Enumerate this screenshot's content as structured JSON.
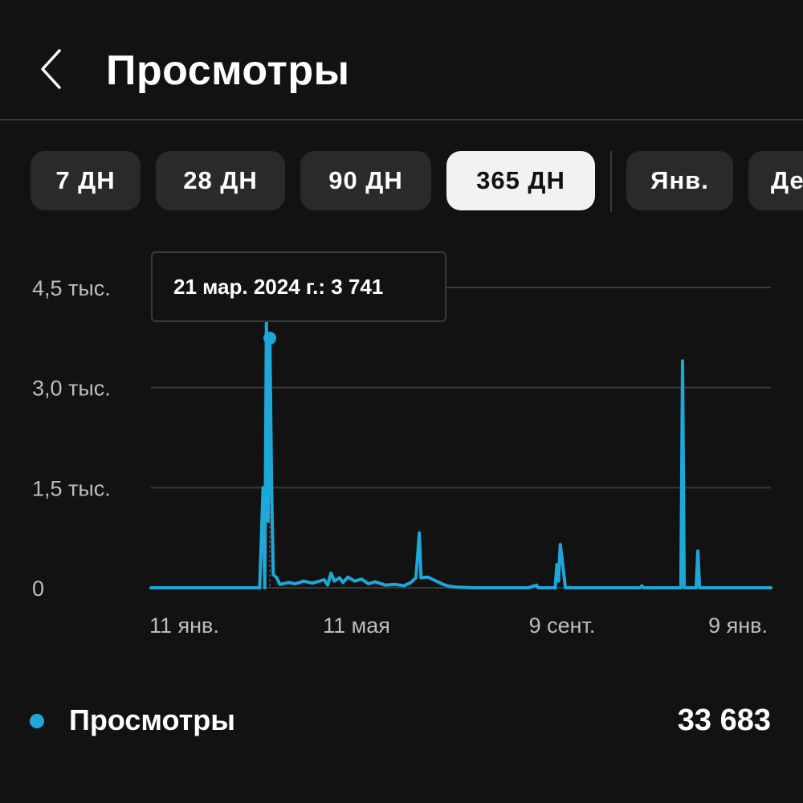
{
  "header": {
    "title": "Просмотры",
    "back_icon": "chevron-left-icon"
  },
  "range_tabs": [
    {
      "label": "7 ДН",
      "active": false
    },
    {
      "label": "28 ДН",
      "active": false
    },
    {
      "label": "90 ДН",
      "active": false
    },
    {
      "label": "365 ДН",
      "active": true
    },
    {
      "label": "Янв.",
      "active": false
    },
    {
      "label": "Дек.",
      "active": false
    }
  ],
  "tooltip": {
    "text": "21 мар. 2024 г.: 3 741"
  },
  "legend": {
    "label": "Просмотры",
    "total": "33 683",
    "color": "#1ea7d9"
  },
  "colors": {
    "background": "#121212",
    "series": "#1ea7d9",
    "grid": "#3a3a3a"
  },
  "chart_data": {
    "type": "line",
    "title": "",
    "xlabel": "",
    "ylabel": "",
    "x_tick_labels": [
      "11 янв.",
      "11 мая",
      "9 сент.",
      "9 янв."
    ],
    "y_tick_labels": [
      "0",
      "1,5 тыс.",
      "3,0 тыс.",
      "4,5 тыс."
    ],
    "y_ticks": [
      0,
      1500,
      3000,
      4500
    ],
    "ylim": [
      0,
      4500
    ],
    "x_domain": [
      "2024-01-11",
      "2025-01-10"
    ],
    "grid": true,
    "highlight": {
      "x": "2024-03-21",
      "y": 3741
    },
    "series": [
      {
        "name": "Просмотры",
        "points": [
          [
            "2024-01-11",
            0
          ],
          [
            "2024-03-15",
            0
          ],
          [
            "2024-03-17",
            1500
          ],
          [
            "2024-03-18",
            0
          ],
          [
            "2024-03-19",
            4000
          ],
          [
            "2024-03-20",
            1000
          ],
          [
            "2024-03-21",
            3741
          ],
          [
            "2024-03-22",
            1500
          ],
          [
            "2024-03-23",
            200
          ],
          [
            "2024-03-25",
            150
          ],
          [
            "2024-03-27",
            50
          ],
          [
            "2024-04-01",
            80
          ],
          [
            "2024-04-05",
            60
          ],
          [
            "2024-04-10",
            100
          ],
          [
            "2024-04-15",
            70
          ],
          [
            "2024-04-22",
            120
          ],
          [
            "2024-04-24",
            40
          ],
          [
            "2024-04-26",
            220
          ],
          [
            "2024-04-28",
            100
          ],
          [
            "2024-05-01",
            150
          ],
          [
            "2024-05-03",
            80
          ],
          [
            "2024-05-06",
            160
          ],
          [
            "2024-05-10",
            100
          ],
          [
            "2024-05-14",
            130
          ],
          [
            "2024-05-18",
            60
          ],
          [
            "2024-05-22",
            90
          ],
          [
            "2024-05-28",
            40
          ],
          [
            "2024-06-03",
            50
          ],
          [
            "2024-06-08",
            30
          ],
          [
            "2024-06-12",
            80
          ],
          [
            "2024-06-15",
            150
          ],
          [
            "2024-06-17",
            820
          ],
          [
            "2024-06-18",
            150
          ],
          [
            "2024-06-22",
            160
          ],
          [
            "2024-06-27",
            100
          ],
          [
            "2024-07-01",
            50
          ],
          [
            "2024-07-05",
            20
          ],
          [
            "2024-07-10",
            10
          ],
          [
            "2024-07-20",
            0
          ],
          [
            "2024-08-20",
            0
          ],
          [
            "2024-08-25",
            40
          ],
          [
            "2024-08-26",
            0
          ],
          [
            "2024-09-05",
            0
          ],
          [
            "2024-09-06",
            350
          ],
          [
            "2024-09-07",
            100
          ],
          [
            "2024-09-08",
            650
          ],
          [
            "2024-09-09",
            450
          ],
          [
            "2024-09-11",
            0
          ],
          [
            "2024-10-25",
            0
          ],
          [
            "2024-10-26",
            30
          ],
          [
            "2024-10-27",
            0
          ],
          [
            "2024-11-18",
            0
          ],
          [
            "2024-11-19",
            3400
          ],
          [
            "2024-11-20",
            0
          ],
          [
            "2024-11-27",
            0
          ],
          [
            "2024-11-28",
            550
          ],
          [
            "2024-11-29",
            0
          ],
          [
            "2025-01-10",
            0
          ]
        ]
      }
    ]
  }
}
